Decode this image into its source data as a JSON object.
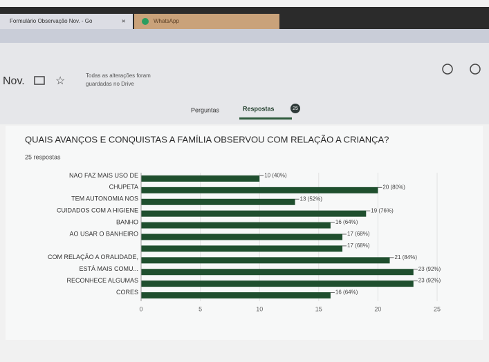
{
  "browser": {
    "tabs": [
      "Formulário Observação Nov. - Go",
      "WhatsApp"
    ]
  },
  "header": {
    "title": "Nov.",
    "save_status_line1": "Todas as alterações foram",
    "save_status_line2": "guardadas no Drive",
    "nav": [
      "Perguntas",
      "Respostas"
    ],
    "badge": "25"
  },
  "question": {
    "title": "QUAIS AVANÇOS E CONQUISTAS A FAMÍLIA OBSERVOU COM RELAÇÃO A CRIANÇA?",
    "responses": "25 respostas"
  },
  "chart_data": {
    "type": "hbar",
    "categories": [
      "NAO FAZ MAIS USO DE",
      "CHUPETA",
      "TEM AUTONOMIA NOS",
      "CUIDADOS COM A HIGIENE",
      "BANHO",
      "AO USAR O BANHEIRO",
      null,
      "COM RELAÇÃO A ORALIDADE,",
      "ESTÁ MAIS COMU...",
      "RECONHECE ALGUMAS",
      "CORES"
    ],
    "values": [
      10,
      20,
      13,
      19,
      16,
      17,
      17,
      21,
      23,
      23,
      16
    ],
    "value_labels": [
      "10 (40%)",
      "20 (80%)",
      "13 (52%)",
      "19 (76%)",
      "16 (64%)",
      "17 (68%)",
      "17 (68%)",
      "21 (84%)",
      "23 (92%)",
      "23 (92%)",
      "16 (64%)"
    ],
    "color": "#1f4f2e",
    "xlim": [
      0,
      25
    ],
    "xticks": [
      0,
      5,
      10,
      15,
      20,
      25
    ]
  }
}
